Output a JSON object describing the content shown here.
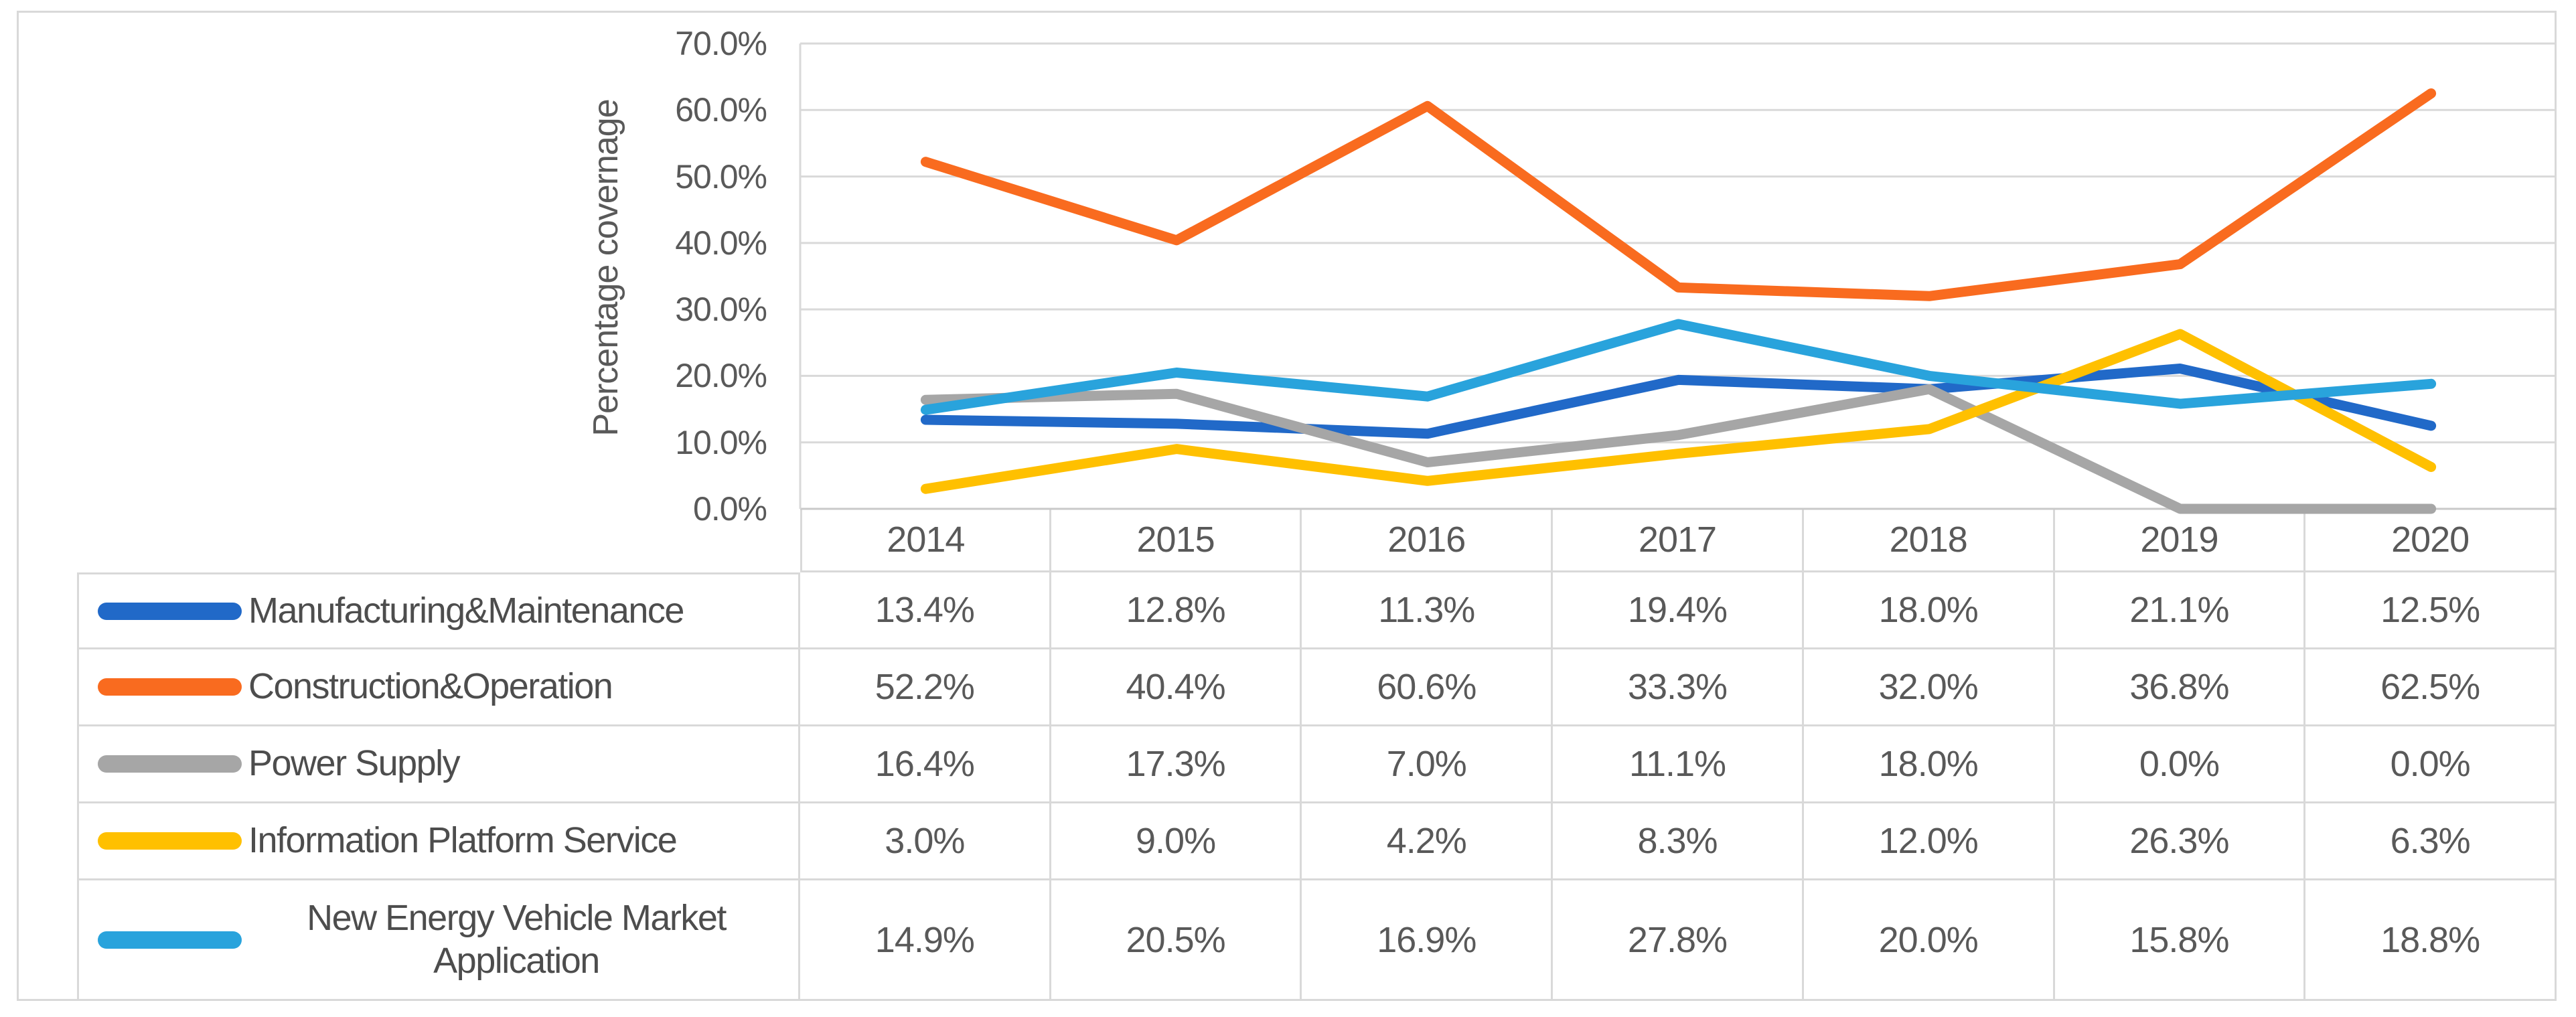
{
  "figure": {
    "kind": "excel-style line chart with attached data table",
    "background": "#FFFFFF",
    "frame_color": "#D9D9D9",
    "text_color": "#595959"
  },
  "chart_data": {
    "type": "line",
    "title": "",
    "xlabel": "",
    "ylabel": "Percentage covernage",
    "categories": [
      "2014",
      "2015",
      "2016",
      "2017",
      "2018",
      "2019",
      "2020"
    ],
    "series": [
      {
        "name": "Manufacturing&Maintenance",
        "color": "#2169C8",
        "values": [
          13.4,
          12.8,
          11.3,
          19.4,
          18.0,
          21.1,
          12.5
        ]
      },
      {
        "name": "Construction&Operation",
        "color": "#F96B1F",
        "values": [
          52.2,
          40.4,
          60.6,
          33.3,
          32.0,
          36.8,
          62.5
        ]
      },
      {
        "name": "Power Supply",
        "color": "#A6A6A6",
        "values": [
          16.4,
          17.3,
          7.0,
          11.1,
          18.0,
          0.0,
          0.0
        ]
      },
      {
        "name": "Information Platform Service",
        "color": "#FFC000",
        "values": [
          3.0,
          9.0,
          4.2,
          8.3,
          12.0,
          26.3,
          6.3
        ]
      },
      {
        "name": "New Energy Vehicle Market Application",
        "color": "#29A3DC",
        "values": [
          14.9,
          20.5,
          16.9,
          27.8,
          20.0,
          15.8,
          18.8
        ]
      }
    ],
    "ylim": [
      0,
      70
    ],
    "ytick_step": 10,
    "ytick_format": "0.0%",
    "value_format": "0.0%",
    "grid": "horizontal",
    "gridline_color": "#D9D9D9",
    "axis_line_color": "#C9C9C9",
    "legend_position": "data-table-left-column"
  }
}
